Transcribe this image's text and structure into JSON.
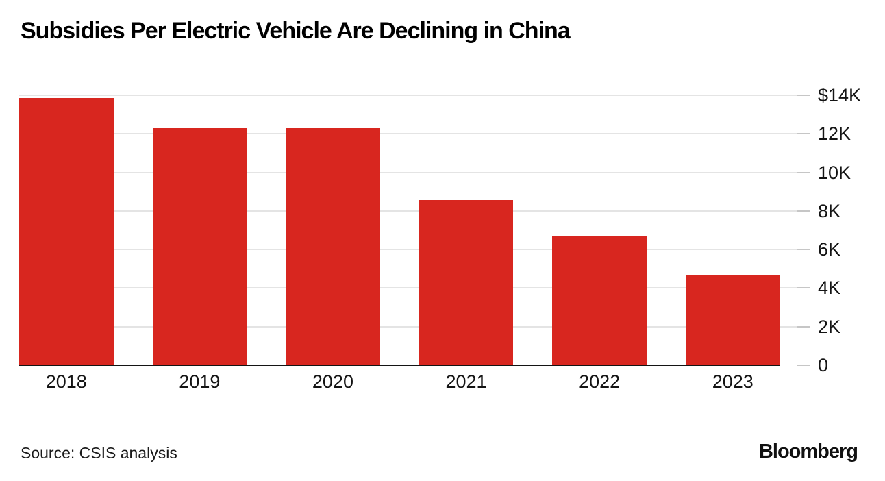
{
  "header": {
    "title": "Subsidies Per Electric Vehicle Are Declining in China"
  },
  "footer": {
    "source": "Source: CSIS analysis",
    "brand": "Bloomberg"
  },
  "colors": {
    "bar": "#d8261f",
    "gridline": "#e4e4e4",
    "tick": "#c6c6c6",
    "baseline": "#141414",
    "text": "#141414",
    "background": "#ffffff"
  },
  "chart_data": {
    "type": "bar",
    "title": "Subsidies Per Electric Vehicle Are Declining in China",
    "categories": [
      "2018",
      "2019",
      "2020",
      "2021",
      "2022",
      "2023"
    ],
    "values": [
      13860,
      12300,
      12300,
      8550,
      6700,
      4640
    ],
    "unit": "USD per vehicle",
    "xlabel": "",
    "ylabel": "",
    "ylim": [
      0,
      14000
    ],
    "yticks": [
      {
        "value": 0,
        "label": "0"
      },
      {
        "value": 2000,
        "label": "2K"
      },
      {
        "value": 4000,
        "label": "4K"
      },
      {
        "value": 6000,
        "label": "6K"
      },
      {
        "value": 8000,
        "label": "8K"
      },
      {
        "value": 10000,
        "label": "10K"
      },
      {
        "value": 12000,
        "label": "12K"
      },
      {
        "value": 14000,
        "label": "$14K"
      }
    ],
    "grid": "horizontal",
    "legend": "none",
    "y_axis_side": "right",
    "bar_color": "#d8261f",
    "source": "Source: CSIS analysis",
    "brand": "Bloomberg"
  }
}
